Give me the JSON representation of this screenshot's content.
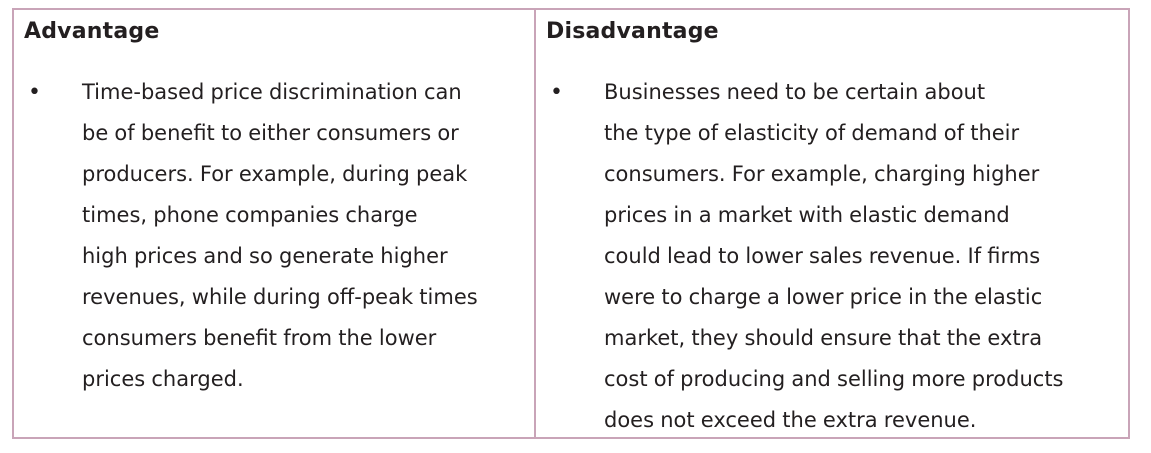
{
  "table": {
    "columns": [
      {
        "heading": "Advantage",
        "bullet": "•",
        "lines": [
          "Time-based price discrimination can",
          "be of benefit to either consumers or",
          "producers. For example, during peak",
          "times, phone companies charge",
          "high prices and so generate higher",
          "revenues, while during off-peak times",
          "consumers benefit from the lower",
          "prices charged."
        ]
      },
      {
        "heading": "Disadvantage",
        "bullet": "•",
        "lines": [
          "Businesses need to be certain about",
          "the type of elasticity of demand of their",
          "consumers. For example, charging higher",
          "prices in a market with elastic demand",
          "could lead to lower sales revenue. If firms",
          "were to charge a lower price in the elastic",
          "market, they should ensure that the extra",
          "cost of producing and selling more products",
          "does not exceed the extra revenue."
        ]
      }
    ],
    "border_color": "#c9a4b8",
    "text_color": "#231f20"
  }
}
